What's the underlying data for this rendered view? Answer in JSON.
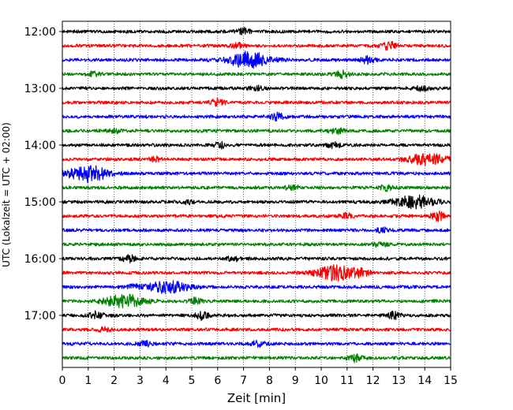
{
  "chart_data": {
    "type": "line",
    "title": "",
    "xlabel": "Zeit  [min]",
    "ylabel": "UTC (Lokalzeit = UTC + 02:00)",
    "xlim": [
      0,
      15
    ],
    "x_ticks": [
      "0",
      "1",
      "2",
      "3",
      "4",
      "5",
      "6",
      "7",
      "8",
      "9",
      "10",
      "11",
      "12",
      "13",
      "14",
      "15"
    ],
    "y_ticks": [
      "12:00",
      "13:00",
      "14:00",
      "15:00",
      "16:00",
      "17:00"
    ],
    "grid": "vertical dotted at each minute",
    "legend": "none",
    "trace_interval_minutes": 15,
    "start_time": "12:00",
    "trace_colors": [
      "#000000",
      "#ff0000",
      "#0000ff",
      "#008000"
    ],
    "series": [
      {
        "start": "12:00",
        "color": "#000000",
        "events": [
          {
            "minute": 7.0,
            "amp": 0.35
          }
        ]
      },
      {
        "start": "12:15",
        "color": "#ff0000",
        "events": [
          {
            "minute": 12.6,
            "amp": 0.5
          },
          {
            "minute": 6.8,
            "amp": 0.3
          }
        ]
      },
      {
        "start": "12:30",
        "color": "#0000ff",
        "events": [
          {
            "minute": 7.2,
            "amp": 0.95
          },
          {
            "minute": 11.8,
            "amp": 0.45
          }
        ]
      },
      {
        "start": "12:45",
        "color": "#008000",
        "events": [
          {
            "minute": 10.8,
            "amp": 0.4
          },
          {
            "minute": 1.2,
            "amp": 0.25
          }
        ]
      },
      {
        "start": "13:00",
        "color": "#000000",
        "events": [
          {
            "minute": 7.5,
            "amp": 0.3
          },
          {
            "minute": 13.9,
            "amp": 0.3
          }
        ]
      },
      {
        "start": "13:15",
        "color": "#ff0000",
        "events": [
          {
            "minute": 6.0,
            "amp": 0.4
          }
        ]
      },
      {
        "start": "13:30",
        "color": "#0000ff",
        "events": [
          {
            "minute": 8.3,
            "amp": 0.4
          }
        ]
      },
      {
        "start": "13:45",
        "color": "#008000",
        "events": [
          {
            "minute": 10.6,
            "amp": 0.35
          },
          {
            "minute": 2.0,
            "amp": 0.25
          }
        ]
      },
      {
        "start": "14:00",
        "color": "#000000",
        "events": [
          {
            "minute": 6.1,
            "amp": 0.35
          },
          {
            "minute": 10.5,
            "amp": 0.3
          }
        ]
      },
      {
        "start": "14:15",
        "color": "#ff0000",
        "events": [
          {
            "minute": 14.1,
            "amp": 0.65
          },
          {
            "minute": 3.6,
            "amp": 0.25
          }
        ]
      },
      {
        "start": "14:30",
        "color": "#0000ff",
        "events": [
          {
            "minute": 1.0,
            "amp": 1.0
          }
        ]
      },
      {
        "start": "14:45",
        "color": "#008000",
        "events": [
          {
            "minute": 8.9,
            "amp": 0.3
          },
          {
            "minute": 12.5,
            "amp": 0.3
          }
        ]
      },
      {
        "start": "15:00",
        "color": "#000000",
        "events": [
          {
            "minute": 13.6,
            "amp": 0.75
          },
          {
            "minute": 4.9,
            "amp": 0.25
          }
        ]
      },
      {
        "start": "15:15",
        "color": "#ff0000",
        "events": [
          {
            "minute": 14.5,
            "amp": 0.55
          },
          {
            "minute": 11.0,
            "amp": 0.3
          }
        ]
      },
      {
        "start": "15:30",
        "color": "#0000ff",
        "events": [
          {
            "minute": 12.4,
            "amp": 0.25
          }
        ]
      },
      {
        "start": "15:45",
        "color": "#008000",
        "events": [
          {
            "minute": 12.3,
            "amp": 0.3
          }
        ]
      },
      {
        "start": "16:00",
        "color": "#000000",
        "events": [
          {
            "minute": 2.6,
            "amp": 0.4
          },
          {
            "minute": 6.6,
            "amp": 0.3
          }
        ]
      },
      {
        "start": "16:15",
        "color": "#ff0000",
        "events": [
          {
            "minute": 10.6,
            "amp": 0.9
          },
          {
            "minute": 11.6,
            "amp": 0.35
          }
        ]
      },
      {
        "start": "16:30",
        "color": "#0000ff",
        "events": [
          {
            "minute": 4.1,
            "amp": 0.7
          },
          {
            "minute": 2.8,
            "amp": 0.3
          }
        ]
      },
      {
        "start": "16:45",
        "color": "#008000",
        "events": [
          {
            "minute": 2.4,
            "amp": 0.75
          },
          {
            "minute": 5.1,
            "amp": 0.35
          }
        ]
      },
      {
        "start": "17:00",
        "color": "#000000",
        "events": [
          {
            "minute": 1.3,
            "amp": 0.4
          },
          {
            "minute": 5.4,
            "amp": 0.45
          },
          {
            "minute": 12.8,
            "amp": 0.4
          }
        ]
      },
      {
        "start": "17:15",
        "color": "#ff0000",
        "events": [
          {
            "minute": 1.6,
            "amp": 0.25
          }
        ]
      },
      {
        "start": "17:30",
        "color": "#0000ff",
        "events": [
          {
            "minute": 7.6,
            "amp": 0.35
          },
          {
            "minute": 3.2,
            "amp": 0.3
          }
        ]
      },
      {
        "start": "17:45",
        "color": "#008000",
        "events": [
          {
            "minute": 11.3,
            "amp": 0.4
          }
        ]
      }
    ]
  }
}
